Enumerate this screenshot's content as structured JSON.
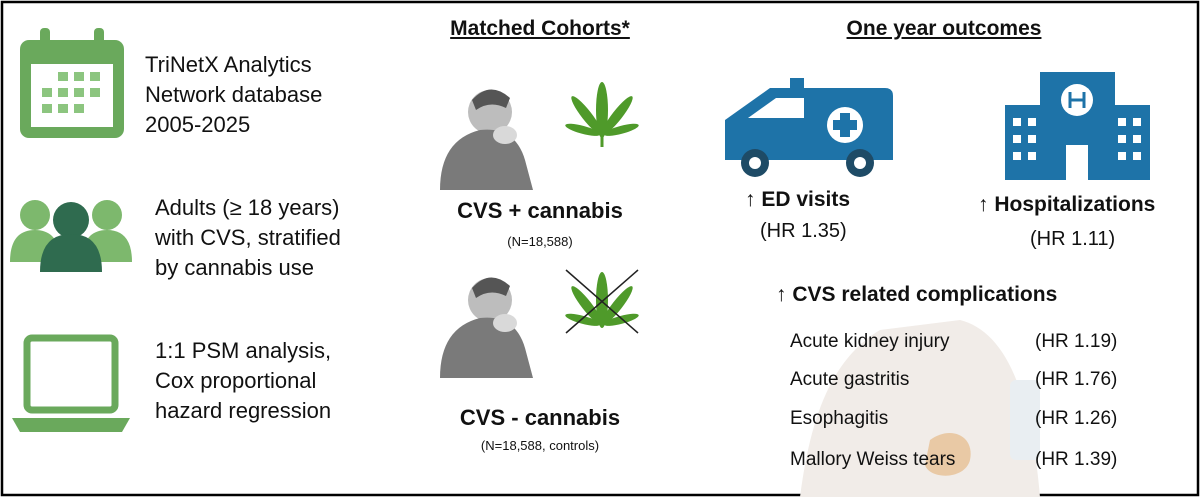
{
  "left": {
    "items": [
      {
        "lines": [
          "TriNetX Analytics",
          "Network database",
          "2005-2025"
        ]
      },
      {
        "lines": [
          "Adults (≥ 18 years)",
          "with CVS, stratified",
          "by cannabis use"
        ]
      },
      {
        "lines": [
          "1:1 PSM analysis,",
          "Cox proportional",
          "hazard regression"
        ]
      }
    ]
  },
  "middle": {
    "heading": "Matched Cohorts*",
    "cohorts": [
      {
        "label": "CVS + cannabis",
        "size": "(N=18,588)"
      },
      {
        "label": "CVS - cannabis",
        "size": "(N=18,588, controls)"
      }
    ]
  },
  "right": {
    "heading": "One year outcomes",
    "outcomes": [
      {
        "label": "↑ ED visits",
        "hr": "(HR 1.35)"
      },
      {
        "label": "↑ Hospitalizations",
        "hr": "(HR 1.11)"
      }
    ],
    "complications": {
      "title": "↑ CVS related complications",
      "rows": [
        [
          "Acute kidney injury",
          "(HR 1.19)"
        ],
        [
          "Acute gastritis",
          "(HR 1.76)"
        ],
        [
          "Esophagitis",
          "(HR 1.26)"
        ],
        [
          "Mallory Weiss tears",
          "(HR 1.39)"
        ]
      ]
    }
  }
}
